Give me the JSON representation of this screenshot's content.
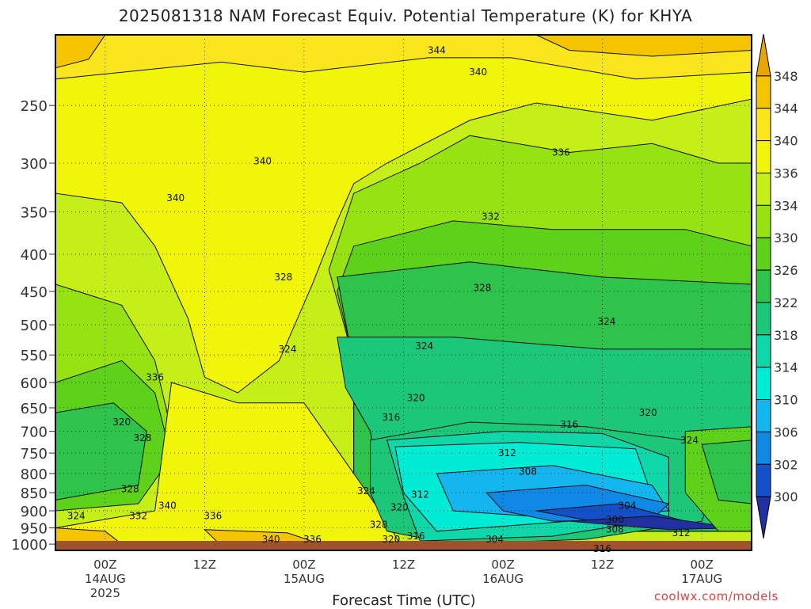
{
  "chart_data": {
    "type": "heatmap",
    "title": "2025081318 NAM Forecast Equiv. Potential Temperature (K) for KHYA",
    "xlabel": "Forecast Time (UTC)",
    "x_ticks": [
      {
        "label": "00Z",
        "sub": "14AUG",
        "sub2": "2025"
      },
      {
        "label": "12Z",
        "sub": "",
        "sub2": ""
      },
      {
        "label": "00Z",
        "sub": "15AUG",
        "sub2": ""
      },
      {
        "label": "12Z",
        "sub": "",
        "sub2": ""
      },
      {
        "label": "00Z",
        "sub": "16AUG",
        "sub2": ""
      },
      {
        "label": "12Z",
        "sub": "",
        "sub2": ""
      },
      {
        "label": "00Z",
        "sub": "17AUG",
        "sub2": ""
      }
    ],
    "x_tick_hours": [
      6,
      18,
      30,
      42,
      54,
      66,
      78
    ],
    "x_range_hours": [
      0,
      84
    ],
    "y_ticks": [
      250,
      300,
      350,
      400,
      450,
      500,
      550,
      600,
      650,
      700,
      750,
      800,
      850,
      900,
      950,
      1000
    ],
    "y_range_hpa": [
      200,
      1020
    ],
    "y_scale": "log",
    "grid": true,
    "colorbar": {
      "labels": [
        348,
        344,
        340,
        336,
        334,
        330,
        326,
        322,
        318,
        314,
        310,
        306,
        302,
        300
      ],
      "colors": [
        "#e8a400",
        "#f5c400",
        "#fbe61e",
        "#f0f50a",
        "#c6ee18",
        "#96e212",
        "#5ed21a",
        "#2ec34a",
        "#1cc77a",
        "#10d7aa",
        "#00ecd4",
        "#14b6f0",
        "#1088e6",
        "#1450c8",
        "#2030a0"
      ]
    },
    "contour_labels": [
      {
        "hour": 46,
        "p": 210,
        "text": "344"
      },
      {
        "hour": 51,
        "p": 225,
        "text": "340"
      },
      {
        "hour": 61,
        "p": 290,
        "text": "336"
      },
      {
        "hour": 25,
        "p": 298,
        "text": "340"
      },
      {
        "hour": 14.5,
        "p": 335,
        "text": "340"
      },
      {
        "hour": 52.5,
        "p": 355,
        "text": "332"
      },
      {
        "hour": 27.5,
        "p": 430,
        "text": "328"
      },
      {
        "hour": 51.5,
        "p": 445,
        "text": "328"
      },
      {
        "hour": 66.5,
        "p": 495,
        "text": "324"
      },
      {
        "hour": 44.5,
        "p": 535,
        "text": "324"
      },
      {
        "hour": 28,
        "p": 540,
        "text": "324"
      },
      {
        "hour": 12,
        "p": 590,
        "text": "336"
      },
      {
        "hour": 43.5,
        "p": 630,
        "text": "320"
      },
      {
        "hour": 71.5,
        "p": 660,
        "text": "320"
      },
      {
        "hour": 40.5,
        "p": 670,
        "text": "316"
      },
      {
        "hour": 62,
        "p": 685,
        "text": "316"
      },
      {
        "hour": 8,
        "p": 680,
        "text": "320"
      },
      {
        "hour": 10.5,
        "p": 715,
        "text": "328"
      },
      {
        "hour": 54.5,
        "p": 750,
        "text": "312"
      },
      {
        "hour": 76.5,
        "p": 720,
        "text": "324"
      },
      {
        "hour": 57,
        "p": 795,
        "text": "308"
      },
      {
        "hour": 9,
        "p": 840,
        "text": "328"
      },
      {
        "hour": 37.5,
        "p": 845,
        "text": "324"
      },
      {
        "hour": 44,
        "p": 855,
        "text": "312"
      },
      {
        "hour": 41.5,
        "p": 890,
        "text": "320"
      },
      {
        "hour": 13.5,
        "p": 885,
        "text": "340"
      },
      {
        "hour": 19,
        "p": 915,
        "text": "336"
      },
      {
        "hour": 10,
        "p": 915,
        "text": "332"
      },
      {
        "hour": 69,
        "p": 885,
        "text": "304"
      },
      {
        "hour": 2.5,
        "p": 915,
        "text": "324"
      },
      {
        "hour": 39,
        "p": 940,
        "text": "328"
      },
      {
        "hour": 67.5,
        "p": 925,
        "text": "300"
      },
      {
        "hour": 67.5,
        "p": 955,
        "text": "308"
      },
      {
        "hour": 75.5,
        "p": 965,
        "text": "312"
      },
      {
        "hour": 43.5,
        "p": 975,
        "text": "316"
      },
      {
        "hour": 40.5,
        "p": 985,
        "text": "320"
      },
      {
        "hour": 53,
        "p": 985,
        "text": "304"
      },
      {
        "hour": 26,
        "p": 985,
        "text": "340"
      },
      {
        "hour": 31,
        "p": 985,
        "text": "336"
      },
      {
        "hour": 66,
        "p": 1015,
        "text": "316"
      }
    ]
  },
  "credit": "coolwx.com/models"
}
